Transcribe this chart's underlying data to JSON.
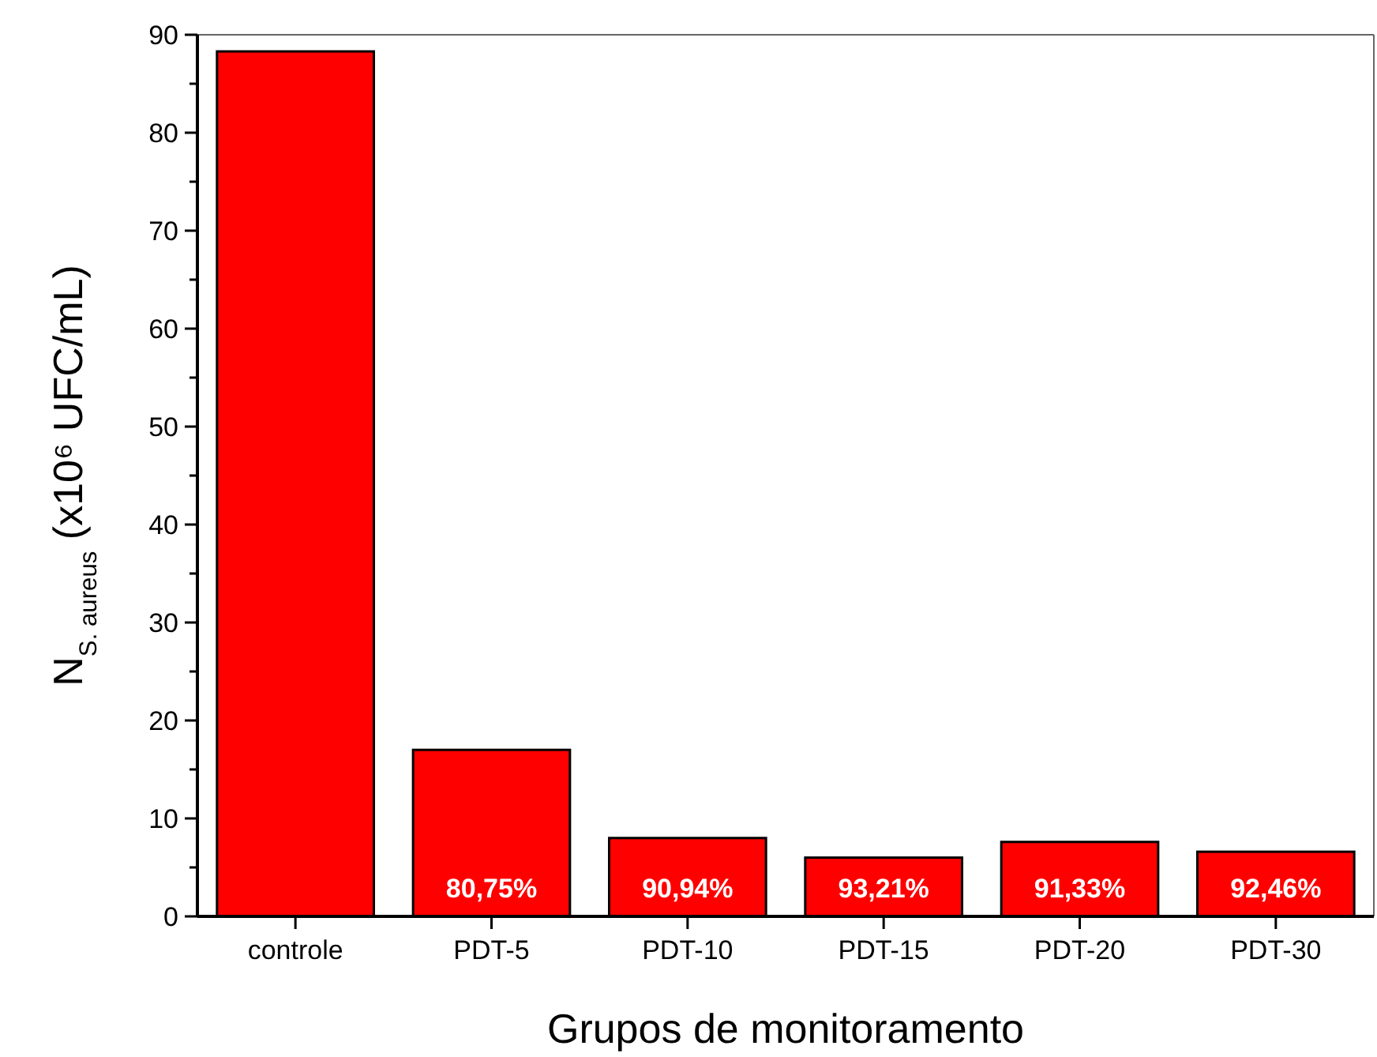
{
  "chart_data": {
    "type": "bar",
    "xlabel": "Grupos de monitoramento",
    "ylabel": "N$_{S. aureus}$ (x10⁶ UFC/mL)",
    "categories": [
      "controle",
      "PDT-5",
      "PDT-10",
      "PDT-15",
      "PDT-20",
      "PDT-30"
    ],
    "values": [
      88.3,
      17.0,
      8.0,
      6.0,
      7.6,
      6.6
    ],
    "annotations": [
      "80,75%",
      "90,94%",
      "93,21%",
      "91,33%",
      "92,46%"
    ],
    "color": "#ff0000",
    "ylim": [
      0,
      90
    ],
    "yticks": [
      0,
      {
        "value": 5,
        "label": null
      },
      10,
      {
        "value": 15,
        "label": null
      },
      20,
      {
        "value": 25,
        "label": null
      },
      30,
      {
        "value": 35,
        "label": null
      },
      40,
      {
        "value": 45,
        "label": null
      },
      50,
      {
        "value": 55,
        "label": null
      },
      60,
      {
        "value": 65,
        "label": null
      },
      70,
      {
        "value": 75,
        "label": null
      },
      80,
      {
        "value": 85,
        "label": null
      },
      90
    ],
    "grid": false
  }
}
